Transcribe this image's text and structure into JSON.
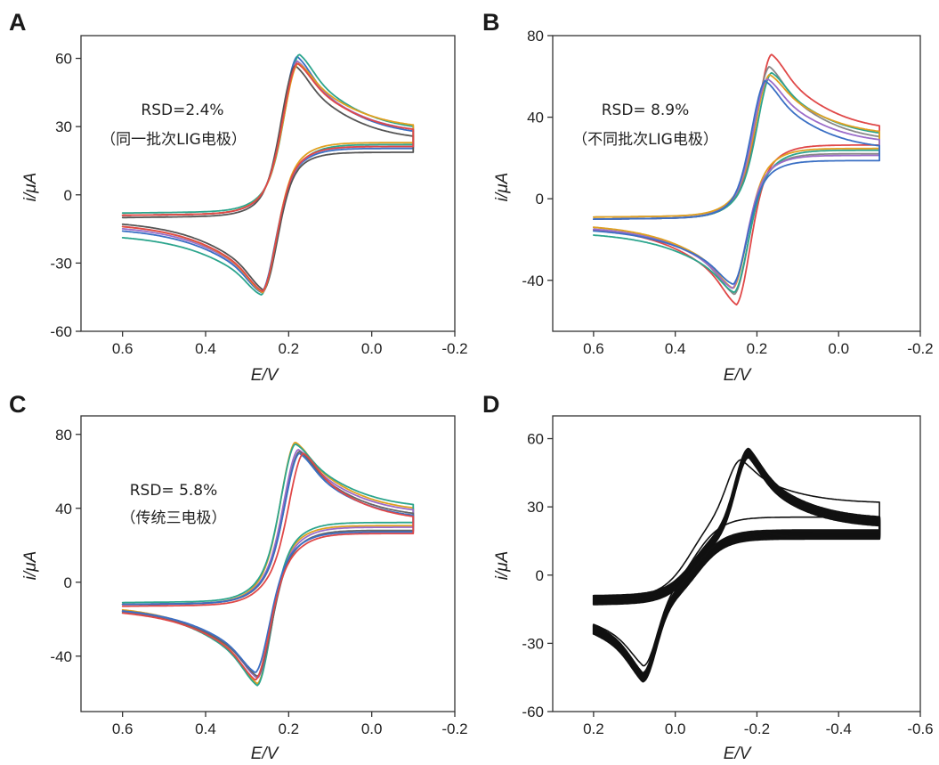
{
  "chart_data": [
    {
      "panel": "A",
      "type": "line",
      "xlabel": "E/V",
      "ylabel": "i/μA",
      "xlim": [
        0.7,
        -0.2
      ],
      "ylim": [
        -60,
        70
      ],
      "xticks": [
        0.6,
        0.4,
        0.2,
        0.0,
        -0.2
      ],
      "xtick_labels": [
        "0.6",
        "0.4",
        "0.2",
        "0.0",
        "-0.2"
      ],
      "yticks": [
        60,
        30,
        0,
        -30,
        -60
      ],
      "ytick_labels": [
        "60",
        "30",
        "0",
        "-30",
        "-60"
      ],
      "annotations": [
        "RSD=2.4%",
        "（同一批次LIG电极）"
      ],
      "e_range": [
        0.6,
        -0.1
      ],
      "series": [
        {
          "color": "#3a6fc4",
          "Epa": 0.18,
          "ipa": 60,
          "Epc": 0.265,
          "ipc": -43,
          "i_start_fwd": -9,
          "i_end": 24,
          "i_start_rev": -14
        },
        {
          "color": "#2ca58d",
          "Epa": 0.175,
          "ipa": 61,
          "Epc": 0.265,
          "ipc": -44,
          "i_start_fwd": -8,
          "i_end": 26,
          "i_start_rev": -17
        },
        {
          "color": "#9b6cc9",
          "Epa": 0.18,
          "ipa": 58,
          "Epc": 0.262,
          "ipc": -43,
          "i_start_fwd": -9,
          "i_end": 25,
          "i_start_rev": -13
        },
        {
          "color": "#555555",
          "Epa": 0.185,
          "ipa": 56,
          "Epc": 0.26,
          "ipc": -42,
          "i_start_fwd": -10,
          "i_end": 22,
          "i_start_rev": -11
        },
        {
          "color": "#e0a020",
          "Epa": 0.178,
          "ipa": 57,
          "Epc": 0.263,
          "ipc": -43,
          "i_start_fwd": -9,
          "i_end": 27,
          "i_start_rev": -12
        },
        {
          "color": "#e04848",
          "Epa": 0.18,
          "ipa": 57,
          "Epc": 0.263,
          "ipc": -42.5,
          "i_start_fwd": -9,
          "i_end": 25,
          "i_start_rev": -12
        }
      ]
    },
    {
      "panel": "B",
      "type": "line",
      "xlabel": "E/V",
      "ylabel": "i/μA",
      "xlim": [
        0.7,
        -0.2
      ],
      "ylim": [
        -65,
        80
      ],
      "xticks": [
        0.6,
        0.4,
        0.2,
        0.0,
        -0.2
      ],
      "xtick_labels": [
        "0.6",
        "0.4",
        "0.2",
        "0.0",
        "-0.2"
      ],
      "yticks": [
        80,
        40,
        0,
        -40
      ],
      "ytick_labels": [
        "80",
        "40",
        "0",
        "-40"
      ],
      "annotations": [
        "RSD= 8.9%",
        "（不同批次LIG电极）"
      ],
      "e_range": [
        0.6,
        -0.1
      ],
      "series": [
        {
          "color": "#e04848",
          "Epa": 0.165,
          "ipa": 70,
          "Epc": 0.25,
          "ipc": -52,
          "i_start_fwd": -10,
          "i_end": 31,
          "i_start_rev": -13
        },
        {
          "color": "#888888",
          "Epa": 0.17,
          "ipa": 64,
          "Epc": 0.255,
          "ipc": -47,
          "i_start_fwd": -9,
          "i_end": 26,
          "i_start_rev": -12
        },
        {
          "color": "#2ca58d",
          "Epa": 0.165,
          "ipa": 61,
          "Epc": 0.255,
          "ipc": -46,
          "i_start_fwd": -10,
          "i_end": 28,
          "i_start_rev": -16
        },
        {
          "color": "#e0a020",
          "Epa": 0.17,
          "ipa": 60,
          "Epc": 0.258,
          "ipc": -44,
          "i_start_fwd": -9,
          "i_end": 29,
          "i_start_rev": -12
        },
        {
          "color": "#9b6cc9",
          "Epa": 0.175,
          "ipa": 58,
          "Epc": 0.26,
          "ipc": -44,
          "i_start_fwd": -10,
          "i_end": 25,
          "i_start_rev": -13
        },
        {
          "color": "#3a6fc4",
          "Epa": 0.18,
          "ipa": 57,
          "Epc": 0.258,
          "ipc": -42,
          "i_start_fwd": -10,
          "i_end": 22,
          "i_start_rev": -14
        }
      ]
    },
    {
      "panel": "C",
      "type": "line",
      "xlabel": "E/V",
      "ylabel": "i/μA",
      "xlim": [
        0.7,
        -0.2
      ],
      "ylim": [
        -70,
        90
      ],
      "xticks": [
        0.6,
        0.4,
        0.2,
        0.0,
        -0.2
      ],
      "xtick_labels": [
        "0.6",
        "0.4",
        "0.2",
        "0.0",
        "-0.2"
      ],
      "yticks": [
        80,
        40,
        0,
        -40
      ],
      "ytick_labels": [
        "80",
        "40",
        "0",
        "-40"
      ],
      "annotations": [
        "RSD= 5.8%",
        "（传统三电极）"
      ],
      "e_range": [
        0.6,
        -0.1
      ],
      "series": [
        {
          "color": "#e0a020",
          "Epa": 0.185,
          "ipa": 75,
          "Epc": 0.275,
          "ipc": -55,
          "i_start_fwd": -12,
          "i_end": 36,
          "i_start_rev": -12
        },
        {
          "color": "#2ca58d",
          "Epa": 0.185,
          "ipa": 74,
          "Epc": 0.275,
          "ipc": -56,
          "i_start_fwd": -11,
          "i_end": 38,
          "i_start_rev": -13
        },
        {
          "color": "#9b6cc9",
          "Epa": 0.178,
          "ipa": 71,
          "Epc": 0.275,
          "ipc": -52,
          "i_start_fwd": -12,
          "i_end": 35,
          "i_start_rev": -13
        },
        {
          "color": "#666666",
          "Epa": 0.175,
          "ipa": 70,
          "Epc": 0.275,
          "ipc": -51,
          "i_start_fwd": -12,
          "i_end": 33,
          "i_start_rev": -14
        },
        {
          "color": "#3a6fc4",
          "Epa": 0.175,
          "ipa": 69,
          "Epc": 0.28,
          "ipc": -49,
          "i_start_fwd": -12,
          "i_end": 32,
          "i_start_rev": -13
        },
        {
          "color": "#e04848",
          "Epa": 0.165,
          "ipa": 69,
          "Epc": 0.28,
          "ipc": -53,
          "i_start_fwd": -13,
          "i_end": 31,
          "i_start_rev": -14
        }
      ]
    },
    {
      "panel": "D",
      "type": "line",
      "xlabel": "E/V",
      "ylabel": "i/μA",
      "xlim": [
        0.3,
        -0.6
      ],
      "ylim": [
        -60,
        70
      ],
      "xticks": [
        0.2,
        0.0,
        -0.2,
        -0.4,
        -0.6
      ],
      "xtick_labels": [
        "0.2",
        "0.0",
        "-0.2",
        "-0.4",
        "-0.6"
      ],
      "yticks": [
        60,
        30,
        0,
        -30,
        -60
      ],
      "ytick_labels": [
        "60",
        "30",
        "0",
        "-30",
        "-60"
      ],
      "annotations": [],
      "e_range": [
        0.2,
        -0.5
      ],
      "series": [
        {
          "color": "#111111",
          "Epa": -0.18,
          "ipa": 53,
          "Epc": 0.08,
          "ipc": -45,
          "i_start_fwd": -11,
          "i_end": 21,
          "i_start_rev": -14,
          "repeat": 10,
          "spread": 1.2
        },
        {
          "color": "#111111",
          "Epa": -0.16,
          "ipa": 50,
          "Epc": 0.078,
          "ipc": -40,
          "i_start_fwd": -10,
          "i_end": 30,
          "i_start_rev": -13,
          "repeat": 1,
          "spread": 0
        }
      ]
    }
  ]
}
